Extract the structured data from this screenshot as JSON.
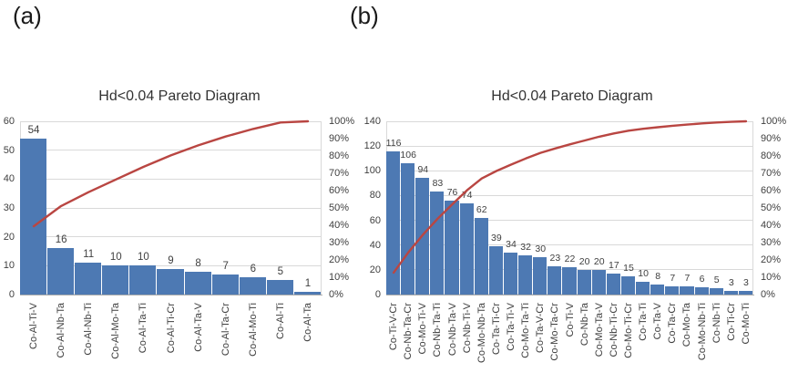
{
  "panels": [
    {
      "letter": "(a)"
    },
    {
      "letter": "(b)"
    }
  ],
  "chart_data": [
    {
      "type": "bar",
      "subtype": "pareto (bars + cumulative % line)",
      "panel": "(a)",
      "title": "Hd<0.04 Pareto Diagram",
      "categories": [
        "Co-Al-Ti-V",
        "Co-Al-Nb-Ta",
        "Co-Al-Nb-Ti",
        "Co-Al-Mo-Ta",
        "Co-Al-Ta-Ti",
        "Co-Al-Ti-Cr",
        "Co-Al-Ta-V",
        "Co-Al-Ta-Cr",
        "Co-Al-Mo-Ti",
        "Co-Al-Ti",
        "Co-Al-Ta"
      ],
      "values": [
        54,
        16,
        11,
        10,
        10,
        9,
        8,
        7,
        6,
        5,
        1
      ],
      "cumulative_pct": [
        39.4,
        51.1,
        59.1,
        66.4,
        73.7,
        80.3,
        86.1,
        91.2,
        95.6,
        99.3,
        100
      ],
      "left_axis": {
        "min": 0,
        "max": 60,
        "ticks": [
          "0",
          "10",
          "20",
          "30",
          "40",
          "50",
          "60"
        ]
      },
      "right_axis": {
        "min_label": "0%",
        "max_label": "100%",
        "ticks": [
          "0%",
          "10%",
          "20%",
          "30%",
          "40%",
          "50%",
          "60%",
          "70%",
          "80%",
          "90%",
          "100%"
        ]
      },
      "bar_color": "#4d79b3",
      "line_color": "#b94642",
      "grid": true,
      "legend": "none"
    },
    {
      "type": "bar",
      "subtype": "pareto (bars + cumulative % line)",
      "panel": "(b)",
      "title": "Hd<0.04 Pareto Diagram",
      "categories": [
        "Co-Ti-V-Cr",
        "Co-Nb-Ta-Cr",
        "Co-Mo-Ti-V",
        "Co-Nb-Ta-Ti",
        "Co-Nb-Ta-V",
        "Co-Nb-Ti-V",
        "Co-Mo-Nb-Ta",
        "Co-Ta-Ti-Cr",
        "Co-Ta-Ti-V",
        "Co-Mo-Ta-Ti",
        "Co-Ta-V-Cr",
        "Co-Mo-Ta-Cr",
        "Co-Ti-V",
        "Co-Nb-Ta",
        "Co-Mo-Ta-V",
        "Co-Nb-Ti-Cr",
        "Co-Mo-Ti-Cr",
        "Co-Ta-Ti",
        "Co-Ta-V",
        "Co-Ta-Cr",
        "Co-Mo-Ta",
        "Co-Mo-Nb-Ti",
        "Co-Nb-Ti",
        "Co-Ti-Cr",
        "Co-Mo-Ti"
      ],
      "values": [
        116,
        106,
        94,
        83,
        76,
        74,
        62,
        39,
        34,
        32,
        30,
        23,
        22,
        20,
        20,
        17,
        15,
        10,
        8,
        7,
        7,
        6,
        5,
        3,
        3
      ],
      "cumulative_pct": [
        12.7,
        24.3,
        34.6,
        43.8,
        52.1,
        60.2,
        67.0,
        71.3,
        75.0,
        78.5,
        81.8,
        84.3,
        86.7,
        88.9,
        91.1,
        93.0,
        94.6,
        95.7,
        96.6,
        97.4,
        98.1,
        98.8,
        99.3,
        99.7,
        100
      ],
      "left_axis": {
        "min": 0,
        "max": 140,
        "ticks": [
          "0",
          "20",
          "40",
          "60",
          "80",
          "100",
          "120",
          "140"
        ]
      },
      "right_axis": {
        "min_label": "0%",
        "max_label": "100%",
        "ticks": [
          "0%",
          "10%",
          "20%",
          "30%",
          "40%",
          "50%",
          "60%",
          "70%",
          "80%",
          "90%",
          "100%"
        ]
      },
      "bar_color": "#4d79b3",
      "line_color": "#b94642",
      "grid": true,
      "legend": "none"
    }
  ]
}
